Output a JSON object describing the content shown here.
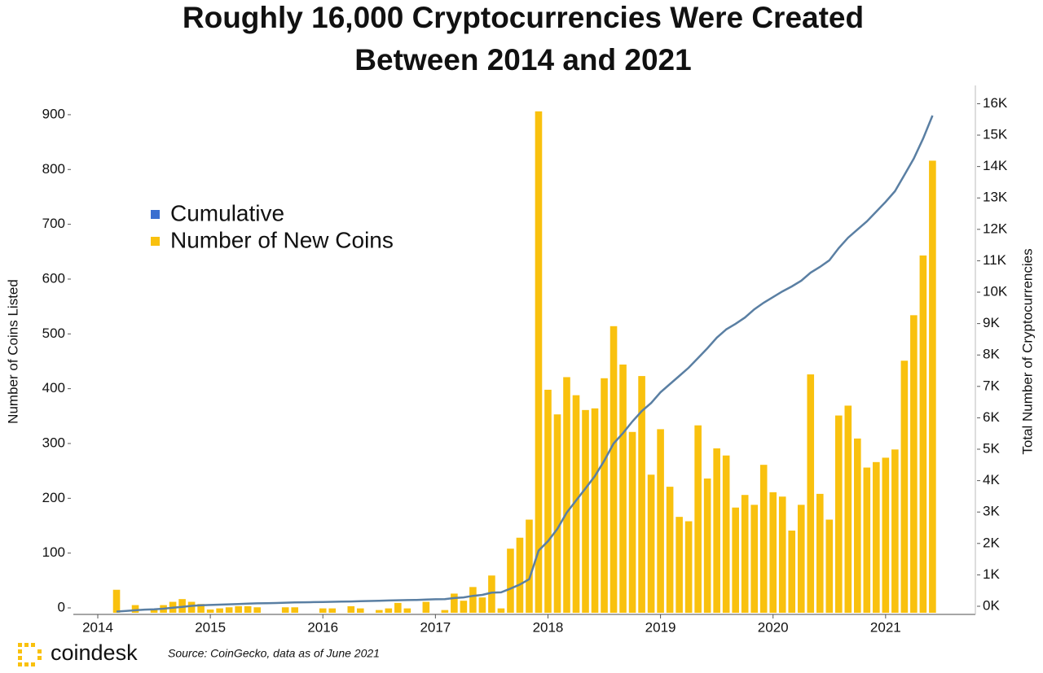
{
  "chart_data": {
    "type": "bar_line",
    "title_lines": [
      "Roughly 16,000 Cryptocurrencies Were Created",
      "Between 2014 and 2021"
    ],
    "y_label": "Number of Coins Listed",
    "y2_label": "Total Number of Cryptocurrencies",
    "categories": [
      "2014",
      null,
      null,
      null,
      null,
      null,
      null,
      null,
      null,
      null,
      null,
      null,
      "2015",
      null,
      null,
      null,
      null,
      null,
      null,
      null,
      null,
      null,
      null,
      null,
      "2016",
      null,
      null,
      null,
      null,
      null,
      null,
      null,
      null,
      null,
      null,
      null,
      "2017",
      null,
      null,
      null,
      null,
      null,
      null,
      null,
      null,
      null,
      null,
      null,
      "2018",
      null,
      null,
      null,
      null,
      null,
      null,
      null,
      null,
      null,
      null,
      null,
      "2019",
      null,
      null,
      null,
      null,
      null,
      null,
      null,
      null,
      null,
      null,
      null,
      "2020",
      null,
      null,
      null,
      null,
      null,
      null,
      null,
      null,
      null,
      null,
      null,
      "2021",
      null,
      null,
      null,
      null,
      null
    ],
    "series": [
      {
        "name": "Cumulative",
        "kind": "line",
        "axis": "y2",
        "color": "#5a7fa3",
        "legend_color": "#3a6fd0",
        "values": [
          null,
          null,
          40,
          60,
          80,
          100,
          110,
          130,
          160,
          190,
          220,
          240,
          250,
          260,
          270,
          280,
          290,
          300,
          305,
          310,
          320,
          330,
          335,
          340,
          345,
          350,
          355,
          360,
          370,
          375,
          380,
          390,
          400,
          405,
          410,
          420,
          430,
          435,
          470,
          490,
          540,
          570,
          640,
          650,
          770,
          900,
          1070,
          1980,
          2280,
          2670,
          3190,
          3575,
          3960,
          4350,
          4840,
          5390,
          5720,
          6090,
          6420,
          6680,
          7020,
          7280,
          7540,
          7800,
          8110,
          8420,
          8760,
          9020,
          9200,
          9400,
          9660,
          9870,
          10050,
          10230,
          10390,
          10570,
          10830,
          11010,
          11220,
          11610,
          11940,
          12200,
          12460,
          12770,
          13080,
          13420,
          13940,
          14460,
          15100,
          15830
        ]
      },
      {
        "name": "Number of New Coins",
        "kind": "bar",
        "color": "#f9c10e",
        "values": [
          0,
          0,
          42,
          0,
          14,
          0,
          6,
          14,
          20,
          25,
          20,
          16,
          6,
          8,
          10,
          12,
          12,
          10,
          0,
          0,
          10,
          10,
          0,
          0,
          8,
          8,
          0,
          12,
          8,
          0,
          5,
          8,
          18,
          8,
          0,
          20,
          0,
          5,
          35,
          22,
          47,
          28,
          68,
          8,
          117,
          137,
          170,
          915,
          407,
          362,
          430,
          397,
          370,
          373,
          428,
          523,
          453,
          330,
          432,
          252,
          335,
          230,
          175,
          167,
          342,
          245,
          300,
          287,
          192,
          215,
          197,
          270,
          220,
          212,
          150,
          197,
          435,
          217,
          170,
          360,
          378,
          318,
          265,
          275,
          283,
          298,
          460,
          543,
          652,
          825
        ]
      }
    ],
    "ylim": [
      0,
      940
    ],
    "yticks": [
      0,
      100,
      200,
      300,
      400,
      500,
      600,
      700,
      800,
      900
    ],
    "y2lim": [
      0,
      16400
    ],
    "y2ticks": [
      {
        "value": 0,
        "label": "0K"
      },
      {
        "value": 1000,
        "label": "1K"
      },
      {
        "value": 2000,
        "label": "2K"
      },
      {
        "value": 3000,
        "label": "3K"
      },
      {
        "value": 4000,
        "label": "4K"
      },
      {
        "value": 5000,
        "label": "5K"
      },
      {
        "value": 6000,
        "label": "6K"
      },
      {
        "value": 7000,
        "label": "7K"
      },
      {
        "value": 8000,
        "label": "8K"
      },
      {
        "value": 9000,
        "label": "9K"
      },
      {
        "value": 10000,
        "label": "10K"
      },
      {
        "value": 11000,
        "label": "11K"
      },
      {
        "value": 12000,
        "label": "12K"
      },
      {
        "value": 13000,
        "label": "13K"
      },
      {
        "value": 14000,
        "label": "14K"
      },
      {
        "value": 15000,
        "label": "15K"
      },
      {
        "value": 16000,
        "label": "16K"
      }
    ],
    "legend": "upper-left"
  },
  "footer": {
    "brand": "coindesk",
    "source": "Source: CoinGecko, data as of June 2021"
  }
}
